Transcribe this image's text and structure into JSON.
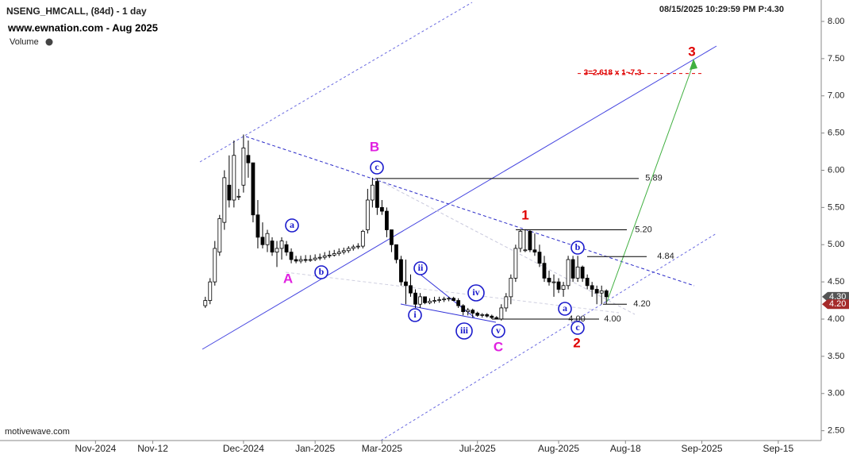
{
  "header": {
    "title": "NSENG_HMCALL, (84d) - 1 day",
    "subtitle": "www.ewnation.com  - Aug 2025",
    "indicator": "Volume",
    "timestamp": "08/15/2025 10:29:59 PM  P:4.30",
    "footer": "motivewave.com"
  },
  "chart_data": {
    "type": "candlestick",
    "xlim": [
      -43,
      129
    ],
    "xticks": [
      {
        "value": -23,
        "label": "Nov-2024"
      },
      {
        "value": -11,
        "label": "Nov-12"
      },
      {
        "value": 8,
        "label": "Dec-2024"
      },
      {
        "value": 23,
        "label": "Jan-2025"
      },
      {
        "value": 37,
        "label": "Mar-2025"
      },
      {
        "value": 57,
        "label": "Jul-2025"
      },
      {
        "value": 74,
        "label": "Aug-2025"
      },
      {
        "value": 88,
        "label": "Aug-18"
      },
      {
        "value": 104,
        "label": "Sep-2025"
      },
      {
        "value": 120,
        "label": "Sep-15"
      }
    ],
    "ylim": [
      2.368,
      8.288
    ],
    "yticks": [
      {
        "value": 2.5,
        "label": "2.50"
      },
      {
        "value": 3,
        "label": "3.00"
      },
      {
        "value": 3.5,
        "label": "3.50"
      },
      {
        "value": 4,
        "label": "4.00"
      },
      {
        "value": 4.5,
        "label": "4.50"
      },
      {
        "value": 5,
        "label": "5.00"
      },
      {
        "value": 5.5,
        "label": "5.50"
      },
      {
        "value": 6,
        "label": "6.00"
      },
      {
        "value": 6.5,
        "label": "6.50"
      },
      {
        "value": 7,
        "label": "7.00"
      },
      {
        "value": 7.5,
        "label": "7.50"
      },
      {
        "value": 8,
        "label": "8.00"
      }
    ],
    "x": [
      0,
      1,
      2,
      3,
      4,
      5,
      6,
      7,
      8,
      9,
      10,
      11,
      12,
      13,
      14,
      15,
      16,
      17,
      18,
      19,
      20,
      21,
      22,
      23,
      24,
      25,
      26,
      27,
      28,
      29,
      30,
      31,
      32,
      33,
      34,
      35,
      36,
      37,
      38,
      39,
      40,
      41,
      42,
      43,
      44,
      45,
      46,
      47,
      48,
      49,
      50,
      51,
      52,
      53,
      54,
      55,
      56,
      57,
      58,
      59,
      60,
      61,
      62,
      63,
      64,
      65,
      66,
      67,
      68,
      69,
      70,
      71,
      72,
      73,
      74,
      75,
      76,
      77,
      78,
      79,
      80,
      81,
      82,
      83,
      84
    ],
    "open": [
      4.18,
      4.25,
      4.5,
      4.9,
      5.3,
      5.8,
      5.6,
      5.65,
      5.8,
      6.2,
      6.1,
      5.4,
      5.1,
      5.0,
      5.05,
      4.9,
      4.95,
      5.0,
      4.9,
      4.8,
      4.78,
      4.8,
      4.79,
      4.8,
      4.82,
      4.83,
      4.85,
      4.86,
      4.88,
      4.9,
      4.92,
      4.95,
      4.97,
      4.98,
      5.2,
      5.6,
      5.85,
      5.5,
      5.45,
      5.2,
      5.0,
      4.8,
      4.5,
      4.45,
      4.35,
      4.2,
      4.3,
      4.22,
      4.24,
      4.25,
      4.26,
      4.27,
      4.28,
      4.25,
      4.18,
      4.1,
      4.12,
      4.08,
      4.05,
      4.06,
      4.04,
      4.02,
      4.0,
      4.15,
      4.3,
      4.55,
      4.95,
      4.93,
      5.18,
      4.93,
      4.9,
      4.75,
      4.55,
      4.5,
      4.5,
      4.4,
      4.45,
      4.8,
      4.55,
      4.7,
      4.55,
      4.45,
      4.4,
      4.35,
      4.38
    ],
    "high": [
      4.3,
      4.55,
      5.05,
      5.4,
      6.0,
      6.2,
      6.4,
      5.75,
      6.48,
      6.4,
      6.1,
      5.6,
      5.3,
      5.2,
      5.1,
      5.05,
      5.1,
      5.05,
      4.95,
      4.85,
      4.85,
      4.86,
      4.86,
      4.87,
      4.88,
      4.9,
      4.92,
      4.93,
      4.95,
      4.96,
      4.98,
      5.0,
      5.02,
      5.2,
      5.75,
      5.9,
      5.89,
      5.6,
      5.5,
      5.2,
      5.0,
      4.85,
      4.8,
      4.6,
      4.4,
      4.35,
      4.3,
      4.28,
      4.3,
      4.3,
      4.3,
      4.3,
      4.3,
      4.28,
      4.2,
      4.15,
      4.14,
      4.1,
      4.08,
      4.08,
      4.06,
      4.04,
      4.2,
      4.35,
      4.6,
      5.0,
      5.2,
      5.2,
      5.2,
      5.15,
      5.0,
      4.85,
      4.65,
      4.6,
      4.55,
      4.5,
      4.85,
      4.85,
      4.85,
      4.72,
      4.6,
      4.5,
      4.45,
      4.45,
      4.4
    ],
    "low": [
      4.15,
      4.2,
      4.45,
      4.85,
      5.2,
      5.5,
      5.5,
      5.6,
      5.7,
      5.9,
      5.3,
      4.95,
      4.95,
      4.9,
      4.85,
      4.7,
      4.8,
      4.85,
      4.75,
      4.75,
      4.75,
      4.76,
      4.77,
      4.78,
      4.79,
      4.8,
      4.82,
      4.84,
      4.85,
      4.87,
      4.89,
      4.92,
      4.94,
      4.95,
      5.15,
      5.5,
      5.4,
      5.4,
      5.1,
      4.9,
      4.75,
      4.45,
      4.2,
      4.3,
      4.15,
      4.15,
      4.2,
      4.2,
      4.21,
      4.22,
      4.23,
      4.24,
      4.24,
      4.15,
      4.05,
      4.05,
      4.02,
      4.03,
      4.02,
      4.02,
      4.0,
      4.0,
      3.98,
      4.1,
      4.2,
      4.5,
      4.9,
      4.9,
      4.9,
      4.85,
      4.7,
      4.5,
      4.45,
      4.3,
      4.35,
      4.3,
      4.4,
      4.5,
      4.5,
      4.5,
      4.4,
      4.3,
      4.2,
      4.2,
      4.2
    ],
    "close": [
      4.25,
      4.5,
      4.95,
      5.35,
      5.9,
      5.6,
      6.2,
      5.65,
      6.3,
      6.1,
      5.4,
      5.1,
      5.0,
      5.15,
      4.9,
      4.95,
      5.05,
      4.9,
      4.8,
      4.78,
      4.8,
      4.79,
      4.8,
      4.82,
      4.83,
      4.85,
      4.86,
      4.88,
      4.9,
      4.92,
      4.95,
      4.97,
      4.98,
      5.18,
      5.6,
      5.8,
      5.5,
      5.45,
      5.2,
      5.0,
      4.8,
      4.5,
      4.45,
      4.35,
      4.2,
      4.3,
      4.22,
      4.24,
      4.25,
      4.26,
      4.27,
      4.28,
      4.25,
      4.18,
      4.1,
      4.12,
      4.08,
      4.05,
      4.06,
      4.04,
      4.02,
      4.0,
      4.15,
      4.3,
      4.55,
      4.95,
      5.18,
      4.93,
      4.93,
      4.9,
      4.75,
      4.55,
      4.5,
      4.5,
      4.4,
      4.45,
      4.8,
      4.55,
      4.7,
      4.55,
      4.45,
      4.4,
      4.35,
      4.38,
      4.3
    ],
    "levels": [
      {
        "value": 5.89,
        "label": "5.89"
      },
      {
        "value": 5.2,
        "label": "5.20"
      },
      {
        "value": 4.84,
        "label": "4.84"
      },
      {
        "value": 4.2,
        "label": "4.20"
      },
      {
        "value": 4.0,
        "label": "4.00"
      }
    ],
    "target": {
      "value": 7.3,
      "label": "3=2.618 x 1~7.3"
    },
    "price_tags": [
      {
        "value": 4.3,
        "label": "4.30",
        "color": "#555555"
      },
      {
        "value": 4.2,
        "label": "4.20",
        "color": "#a52a2a"
      }
    ],
    "wave_labels": [
      "A",
      "B",
      "C",
      "1",
      "2",
      "3"
    ],
    "wave_colors": [
      "#e020e0",
      "#e020e0",
      "#e020e0",
      "#e00000",
      "#e00000",
      "#e00000"
    ],
    "sub_waves": [
      "a",
      "b",
      "c",
      "i",
      "ii",
      "iii",
      "iv",
      "v",
      "a",
      "b",
      "c"
    ]
  }
}
